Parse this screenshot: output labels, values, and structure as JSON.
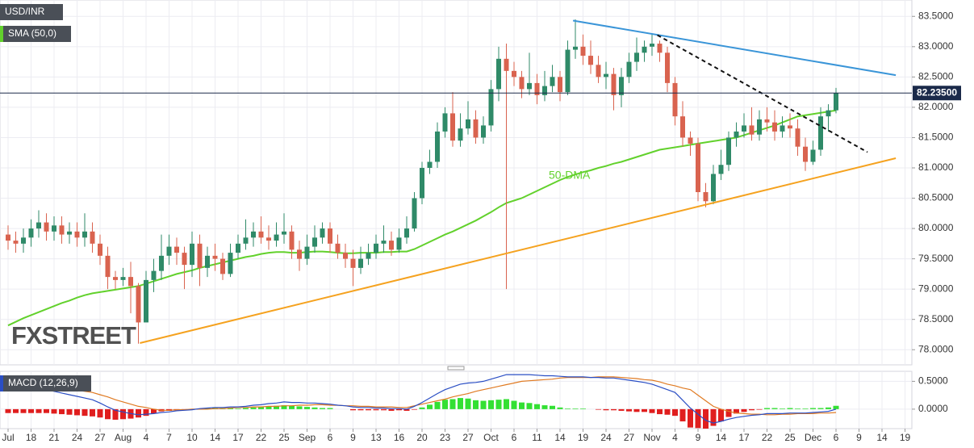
{
  "chart_data": {
    "type": "candlestick",
    "symbol": "USD/INR",
    "categories": [
      "Jul",
      null,
      null,
      "18",
      null,
      null,
      "21",
      null,
      null,
      "24",
      null,
      null,
      "27",
      null,
      null,
      "Aug",
      null,
      null,
      "4",
      null,
      null,
      "7",
      null,
      null,
      "10",
      null,
      null,
      "14",
      null,
      null,
      "17",
      null,
      null,
      "22",
      null,
      null,
      "25",
      null,
      null,
      "Sep",
      null,
      null,
      "6",
      null,
      null,
      "9",
      null,
      null,
      "13",
      null,
      null,
      "16",
      null,
      null,
      "20",
      null,
      null,
      "23",
      null,
      null,
      "27",
      null,
      null,
      "Oct",
      null,
      null,
      "6",
      null,
      null,
      "11",
      null,
      null,
      "14",
      null,
      null,
      "19",
      null,
      null,
      "24",
      null,
      null,
      "27",
      null,
      null,
      "Nov",
      null,
      null,
      "4",
      null,
      null,
      "9",
      null,
      null,
      "14",
      null,
      null,
      "17",
      null,
      null,
      "22",
      null,
      null,
      "25",
      null,
      null,
      "Dec",
      null,
      null,
      "6",
      null,
      null,
      "9",
      null,
      null,
      "14",
      null,
      null,
      "19"
    ],
    "open": [
      79.9,
      79.8,
      79.75,
      79.85,
      80.0,
      80.1,
      79.95,
      80.05,
      79.9,
      79.95,
      79.85,
      79.95,
      79.75,
      79.55,
      79.2,
      79.15,
      79.2,
      79.05,
      78.45,
      79.15,
      79.3,
      79.55,
      79.7,
      79.6,
      79.4,
      79.75,
      79.35,
      79.55,
      79.5,
      79.25,
      79.6,
      79.75,
      79.85,
      79.95,
      79.85,
      79.8,
      79.9,
      79.95,
      79.65,
      79.5,
      79.7,
      79.85,
      80.0,
      79.75,
      79.6,
      79.5,
      79.35,
      79.5,
      79.6,
      79.75,
      79.8,
      79.65,
      79.85,
      80.0,
      80.5,
      81.0,
      81.1,
      81.6,
      81.9,
      81.45,
      81.65,
      81.8,
      81.5,
      81.7,
      82.3,
      82.8,
      82.6,
      82.5,
      82.3,
      82.4,
      82.2,
      82.35,
      82.5,
      82.25,
      82.95,
      83.0,
      82.85,
      82.7,
      82.5,
      82.55,
      82.2,
      82.5,
      82.75,
      82.9,
      83.0,
      83.05,
      82.9,
      82.4,
      81.85,
      81.5,
      81.4,
      80.6,
      80.45,
      80.9,
      81.05,
      81.5,
      81.6,
      81.7,
      81.55,
      81.8,
      81.75,
      81.6,
      81.7,
      81.65,
      81.35,
      81.1,
      81.3,
      81.85,
      81.95,
      null,
      null,
      null,
      null,
      null,
      null,
      null,
      null,
      null
    ],
    "high": [
      80.05,
      79.95,
      80.0,
      80.15,
      80.3,
      80.25,
      80.2,
      80.2,
      80.1,
      80.1,
      80.25,
      80.1,
      79.9,
      79.7,
      79.3,
      79.35,
      79.45,
      79.1,
      79.3,
      79.5,
      79.9,
      79.9,
      79.85,
      79.7,
      79.95,
      79.9,
      79.7,
      79.75,
      79.6,
      79.75,
      79.9,
      80.15,
      80.1,
      80.2,
      80.05,
      80.1,
      80.25,
      80.05,
      79.8,
      79.9,
      80.05,
      80.1,
      80.1,
      79.9,
      79.75,
      79.65,
      79.7,
      79.75,
      79.9,
      80.05,
      79.95,
      80.0,
      80.2,
      80.6,
      81.1,
      81.3,
      81.75,
      82.0,
      82.25,
      81.9,
      82.1,
      81.95,
      81.85,
      82.45,
      83.0,
      83.05,
      82.75,
      82.6,
      82.9,
      82.55,
      82.6,
      82.7,
      82.6,
      83.1,
      83.45,
      83.2,
      83.1,
      82.85,
      82.75,
      82.65,
      82.65,
      82.9,
      83.15,
      83.1,
      83.2,
      83.1,
      83.0,
      82.5,
      82.1,
      81.6,
      81.5,
      80.75,
      81.05,
      81.3,
      81.6,
      81.75,
      81.9,
      82.0,
      81.95,
      82.0,
      81.95,
      81.85,
      81.9,
      81.8,
      81.5,
      81.45,
      82.0,
      82.05,
      82.32,
      null,
      null,
      null,
      null,
      null,
      null,
      null,
      null,
      null
    ],
    "low": [
      79.65,
      79.6,
      79.6,
      79.7,
      79.85,
      79.8,
      79.8,
      79.75,
      79.75,
      79.7,
      79.7,
      79.6,
      79.4,
      79.0,
      79.0,
      79.05,
      78.6,
      78.1,
      78.5,
      78.95,
      79.15,
      79.4,
      79.4,
      79.0,
      79.2,
      79.05,
      79.2,
      79.3,
      79.15,
      79.2,
      79.5,
      79.65,
      79.7,
      79.75,
      79.65,
      79.7,
      79.75,
      79.5,
      79.3,
      79.4,
      79.6,
      79.75,
      79.6,
      79.5,
      79.35,
      79.05,
      79.25,
      79.4,
      79.5,
      79.6,
      79.55,
      79.6,
      79.75,
      79.95,
      80.4,
      80.9,
      81.0,
      81.5,
      81.35,
      81.35,
      81.55,
      81.4,
      81.4,
      81.6,
      82.1,
      79.0,
      82.35,
      82.15,
      82.2,
      82.05,
      82.1,
      82.25,
      82.1,
      82.2,
      82.8,
      82.7,
      82.55,
      82.4,
      82.3,
      81.95,
      82.0,
      82.4,
      82.6,
      82.75,
      82.85,
      82.75,
      82.25,
      81.7,
      81.35,
      81.2,
      80.45,
      80.35,
      80.4,
      80.8,
      80.95,
      81.35,
      81.5,
      81.45,
      81.45,
      81.6,
      81.45,
      81.5,
      81.5,
      81.2,
      80.95,
      81.05,
      81.2,
      81.6,
      81.9,
      null,
      null,
      null,
      null,
      null,
      null,
      null,
      null,
      null
    ],
    "close": [
      79.8,
      79.75,
      79.85,
      80.0,
      80.1,
      79.95,
      80.05,
      79.9,
      79.95,
      79.85,
      79.95,
      79.75,
      79.55,
      79.2,
      79.15,
      79.2,
      79.05,
      78.45,
      79.15,
      79.3,
      79.55,
      79.7,
      79.6,
      79.4,
      79.75,
      79.35,
      79.55,
      79.5,
      79.25,
      79.6,
      79.75,
      79.85,
      79.95,
      79.85,
      79.8,
      79.9,
      79.95,
      79.65,
      79.5,
      79.7,
      79.85,
      80.0,
      79.75,
      79.6,
      79.5,
      79.35,
      79.5,
      79.6,
      79.75,
      79.8,
      79.65,
      79.85,
      80.0,
      80.5,
      81.0,
      81.1,
      81.6,
      81.9,
      81.45,
      81.65,
      81.8,
      81.5,
      81.7,
      82.3,
      82.8,
      82.6,
      82.5,
      82.3,
      82.4,
      82.2,
      82.35,
      82.5,
      82.25,
      82.95,
      83.0,
      82.85,
      82.7,
      82.5,
      82.55,
      82.2,
      82.5,
      82.75,
      82.9,
      83.0,
      83.05,
      82.9,
      82.4,
      81.85,
      81.5,
      81.4,
      80.6,
      80.45,
      80.9,
      81.05,
      81.5,
      81.6,
      81.7,
      81.55,
      81.8,
      81.75,
      81.6,
      81.7,
      81.65,
      81.35,
      81.1,
      81.3,
      81.85,
      81.95,
      82.235,
      null,
      null,
      null,
      null,
      null,
      null,
      null,
      null,
      null
    ],
    "up_color": "#2f8a68",
    "down_color": "#d9634f",
    "ylim": [
      77.75,
      83.77
    ],
    "yticks": [
      {
        "value": 78,
        "label": "78.0000"
      },
      {
        "value": 78.5,
        "label": "78.5000"
      },
      {
        "value": 79,
        "label": "79.0000"
      },
      {
        "value": 79.5,
        "label": "79.5000"
      },
      {
        "value": 80,
        "label": "80.0000"
      },
      {
        "value": 80.5,
        "label": "80.5000"
      },
      {
        "value": 81,
        "label": "81.0000"
      },
      {
        "value": 81.5,
        "label": "81.5000"
      },
      {
        "value": 82,
        "label": "82.0000"
      },
      {
        "value": 82.5,
        "label": "82.5000"
      },
      {
        "value": 83,
        "label": "83.0000"
      },
      {
        "value": 83.5,
        "label": "83.5000"
      }
    ],
    "grid": true,
    "last": {
      "value": 82.235,
      "label": "82.23500",
      "color": "#1b2a4a"
    },
    "sma": {
      "name": "SMA (50,0)",
      "color": "#62d12c",
      "values": [
        78.4,
        78.46,
        78.52,
        78.57,
        78.62,
        78.67,
        78.72,
        78.77,
        78.81,
        78.86,
        78.9,
        78.93,
        78.95,
        78.97,
        78.99,
        79.01,
        79.03,
        79.05,
        79.09,
        79.13,
        79.17,
        79.21,
        79.25,
        79.28,
        79.31,
        79.35,
        79.38,
        79.41,
        79.44,
        79.47,
        79.5,
        79.53,
        79.55,
        79.58,
        79.6,
        79.61,
        79.61,
        79.6,
        79.6,
        79.61,
        79.62,
        79.62,
        79.61,
        79.6,
        79.59,
        79.59,
        79.6,
        79.6,
        79.6,
        79.61,
        79.61,
        79.62,
        79.62,
        79.66,
        79.72,
        79.78,
        79.84,
        79.9,
        79.95,
        80.01,
        80.07,
        80.13,
        80.2,
        80.27,
        80.35,
        80.42,
        80.46,
        80.5,
        80.56,
        80.62,
        80.68,
        80.74,
        80.8,
        80.85,
        80.89,
        80.93,
        80.96,
        81.0,
        81.03,
        81.07,
        81.1,
        81.14,
        81.18,
        81.22,
        81.26,
        81.3,
        81.32,
        81.34,
        81.36,
        81.38,
        81.4,
        81.42,
        81.44,
        81.46,
        81.48,
        81.5,
        81.54,
        81.58,
        81.62,
        81.66,
        81.7,
        81.75,
        81.8,
        81.85,
        81.87,
        81.89,
        81.91,
        81.93,
        81.95,
        null,
        null,
        null,
        null,
        null,
        null,
        null,
        null,
        null
      ]
    },
    "annotation": {
      "text": "50-DMA",
      "color": "#62d12c"
    },
    "trendlines": [
      {
        "color": "#3a95d8",
        "dash": false,
        "x": [
          73.7,
          115.8
        ],
        "y": [
          83.43,
          82.53
        ]
      },
      {
        "color": "#111111",
        "dash": true,
        "x": [
          84.7,
          112.1
        ],
        "y": [
          83.19,
          81.26
        ]
      },
      {
        "color": "#f5a21f",
        "dash": false,
        "x": [
          17.2,
          115.8
        ],
        "y": [
          78.11,
          81.16
        ]
      }
    ],
    "watermark": "FXSTREET",
    "macd": {
      "name": "MACD (12,26,9)",
      "ylim": [
        -0.35,
        0.68
      ],
      "yticks": [
        {
          "value": 0,
          "label": "0.0000"
        },
        {
          "value": 0.5,
          "label": "0.5000"
        }
      ],
      "line": {
        "color": "#2a4ec4",
        "values": [
          0.38,
          0.37,
          0.37,
          0.36,
          0.36,
          0.35,
          0.32,
          0.29,
          0.26,
          0.23,
          0.2,
          0.17,
          0.11,
          0.04,
          -0.02,
          -0.05,
          -0.08,
          -0.1,
          -0.09,
          -0.08,
          -0.06,
          -0.05,
          -0.03,
          -0.02,
          -0.01,
          0.01,
          0.02,
          0.03,
          0.03,
          0.04,
          0.04,
          0.05,
          0.07,
          0.08,
          0.1,
          0.11,
          0.13,
          0.12,
          0.12,
          0.11,
          0.11,
          0.1,
          0.09,
          0.07,
          0.06,
          0.04,
          0.03,
          0.03,
          0.02,
          0.02,
          0.01,
          0.01,
          0,
          0.05,
          0.12,
          0.2,
          0.28,
          0.35,
          0.4,
          0.45,
          0.47,
          0.48,
          0.5,
          0.54,
          0.58,
          0.62,
          0.62,
          0.62,
          0.62,
          0.61,
          0.6,
          0.6,
          0.59,
          0.58,
          0.58,
          0.58,
          0.57,
          0.57,
          0.56,
          0.56,
          0.54,
          0.52,
          0.5,
          0.48,
          0.45,
          0.4,
          0.35,
          0.3,
          0.16,
          0.02,
          -0.09,
          -0.2,
          -0.25,
          -0.22,
          -0.18,
          -0.15,
          -0.13,
          -0.11,
          -0.1,
          -0.08,
          -0.08,
          -0.08,
          -0.07,
          -0.07,
          -0.07,
          -0.06,
          -0.05,
          -0.04,
          0,
          null,
          null,
          null,
          null,
          null,
          null,
          null,
          null,
          null
        ]
      },
      "signal": {
        "color": "#e07a22",
        "values": [
          0.45,
          0.44,
          0.44,
          0.43,
          0.43,
          0.42,
          0.4,
          0.38,
          0.36,
          0.34,
          0.32,
          0.3,
          0.26,
          0.22,
          0.17,
          0.13,
          0.09,
          0.05,
          0.03,
          0,
          -0.02,
          -0.02,
          -0.01,
          -0.01,
          0,
          0,
          0,
          0.01,
          0.01,
          0.02,
          0.03,
          0.03,
          0.04,
          0.04,
          0.05,
          0.05,
          0.06,
          0.06,
          0.07,
          0.07,
          0.08,
          0.08,
          0.07,
          0.07,
          0.06,
          0.06,
          0.05,
          0.05,
          0.04,
          0.04,
          0.04,
          0.03,
          0.03,
          0.06,
          0.09,
          0.12,
          0.15,
          0.18,
          0.22,
          0.25,
          0.28,
          0.32,
          0.35,
          0.38,
          0.41,
          0.44,
          0.47,
          0.5,
          0.51,
          0.52,
          0.53,
          0.54,
          0.56,
          0.57,
          0.57,
          0.57,
          0.57,
          0.58,
          0.58,
          0.58,
          0.57,
          0.56,
          0.55,
          0.53,
          0.52,
          0.49,
          0.45,
          0.42,
          0.38,
          0.35,
          0.25,
          0.15,
          0.05,
          0,
          -0.04,
          -0.07,
          -0.08,
          -0.09,
          -0.09,
          -0.1,
          -0.1,
          -0.09,
          -0.09,
          -0.08,
          -0.08,
          -0.08,
          -0.07,
          -0.07,
          -0.06,
          null,
          null,
          null,
          null,
          null,
          null,
          null,
          null,
          null
        ]
      },
      "histogram": {
        "up_color": "#33e033",
        "down_color": "#e01e1e",
        "values": [
          -0.07,
          -0.07,
          -0.07,
          -0.07,
          -0.07,
          -0.07,
          -0.08,
          -0.09,
          -0.1,
          -0.11,
          -0.12,
          -0.13,
          -0.15,
          -0.18,
          -0.19,
          -0.18,
          -0.17,
          -0.15,
          -0.12,
          -0.08,
          -0.04,
          -0.03,
          -0.02,
          -0.01,
          -0.01,
          0.01,
          0.02,
          0.02,
          0.02,
          0.02,
          0.01,
          0.02,
          0.03,
          0.04,
          0.05,
          0.06,
          0.07,
          0.06,
          0.05,
          0.04,
          0.03,
          0.02,
          0.02,
          0,
          0,
          -0.02,
          -0.02,
          -0.02,
          -0.02,
          -0.02,
          -0.03,
          -0.02,
          -0.03,
          -0.01,
          0.03,
          0.08,
          0.13,
          0.17,
          0.18,
          0.2,
          0.19,
          0.16,
          0.15,
          0.16,
          0.17,
          0.18,
          0.15,
          0.12,
          0.11,
          0.09,
          0.07,
          0.06,
          0.03,
          0.01,
          0.01,
          0.01,
          0,
          -0.01,
          -0.02,
          -0.02,
          -0.03,
          -0.04,
          -0.05,
          -0.05,
          -0.07,
          -0.09,
          -0.1,
          -0.12,
          -0.22,
          -0.33,
          -0.34,
          -0.35,
          -0.3,
          -0.22,
          -0.14,
          -0.08,
          -0.05,
          -0.02,
          -0.01,
          0.02,
          0.02,
          0.01,
          0.02,
          0.01,
          0.01,
          0.02,
          0.02,
          0.03,
          0.06,
          null,
          null,
          null,
          null,
          null,
          null,
          null,
          null,
          null
        ]
      }
    }
  }
}
